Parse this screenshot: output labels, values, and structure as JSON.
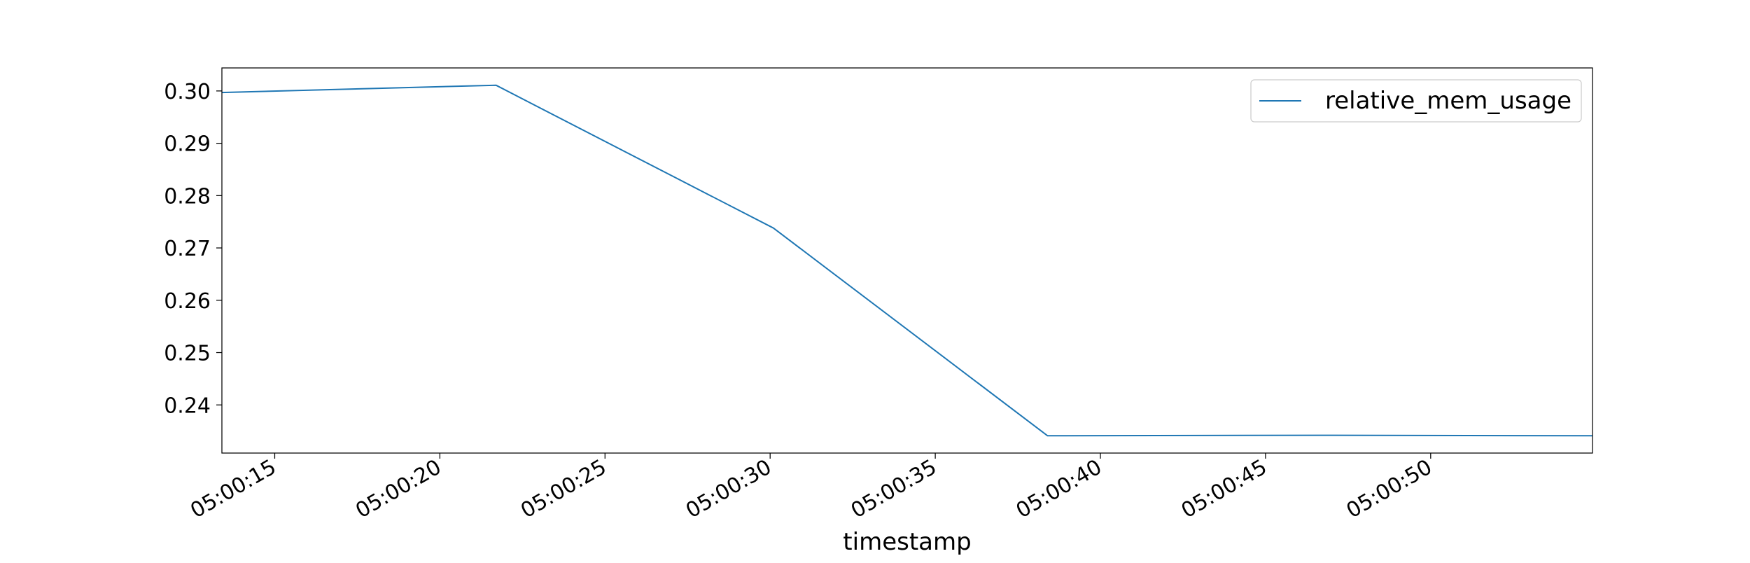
{
  "chart_data": {
    "type": "line",
    "title": "",
    "xlabel": "timestamp",
    "ylabel": "",
    "x_ticks": [
      "05:00:15",
      "05:00:20",
      "05:00:25",
      "05:00:30",
      "05:00:35",
      "05:00:40",
      "05:00:45",
      "05:00:50"
    ],
    "y_ticks": [
      "0.24",
      "0.25",
      "0.26",
      "0.27",
      "0.28",
      "0.29",
      "0.30"
    ],
    "xlim": [
      "05:00:13.4",
      "05:00:54.9"
    ],
    "ylim": [
      0.2308,
      0.3044
    ],
    "grid": false,
    "legend_position": "top-right",
    "series": [
      {
        "name": "relative_mem_usage",
        "color": "#1f77b4",
        "x": [
          "05:00:13.4",
          "05:00:21.7",
          "05:00:30.1",
          "05:00:38.4",
          "05:00:46.7",
          "05:00:54.9"
        ],
        "y": [
          0.2997,
          0.3011,
          0.2738,
          0.2341,
          0.2342,
          0.2341
        ]
      }
    ]
  }
}
